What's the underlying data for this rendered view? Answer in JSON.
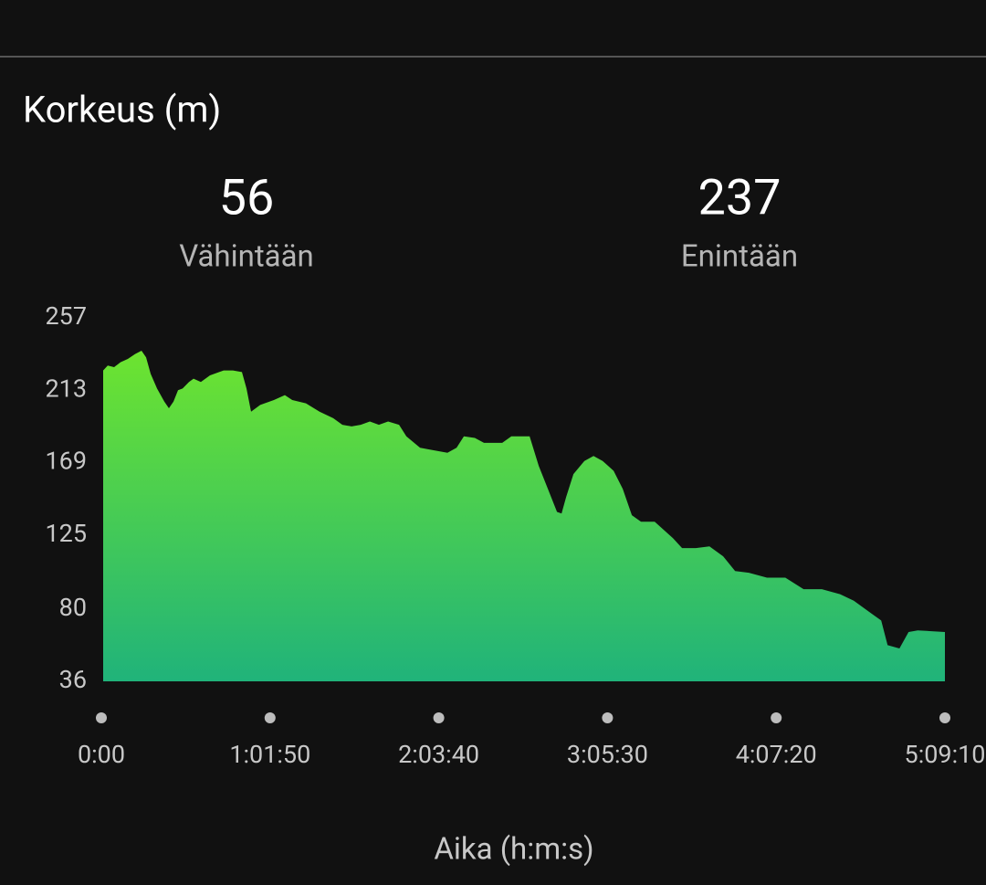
{
  "header": {
    "stats": [
      {
        "value": "56",
        "label": "Vähintään"
      },
      {
        "value": "237",
        "label": "Enintään"
      }
    ]
  },
  "chart_data": {
    "type": "area",
    "title": "Korkeus (m)",
    "x_label": "Aika (h:m:s)",
    "gradient": [
      "#6de42f",
      "#20b37a"
    ],
    "x": [
      40,
      141,
      281,
      422,
      582,
      743,
      884,
      984,
      1084,
      1225,
      1386,
      1486,
      1586,
      1687,
      1787,
      1928,
      2028,
      2189,
      2390,
      2590,
      2691,
      2892,
      3092,
      3193,
      3293,
      3494,
      3795,
      4036,
      4197,
      4498,
      4799,
      5100,
      5301,
      5502,
      5703,
      5904,
      6104,
      6305,
      6546,
      6707,
      7008,
      7209,
      7610,
      7811,
      7972,
      8213,
      8414,
      8815,
      9016,
      9418,
      9619,
      9819,
      10020,
      10120,
      10221,
      10381,
      10622,
      10823,
      11024,
      11265,
      11466,
      11666,
      11867,
      12168,
      12369,
      12570,
      12771,
      13072,
      13373,
      13674,
      13936,
      14237,
      14638,
      15040,
      15442,
      15843,
      16245,
      16546,
      16947,
      17148,
      17289,
      17550,
      17750,
      17951,
      18550
    ],
    "values": [
      225,
      228,
      227,
      230,
      232,
      235,
      237,
      233,
      223,
      214,
      206,
      202,
      206,
      213,
      214,
      218,
      220,
      218,
      222,
      224,
      225,
      225,
      224,
      214,
      200,
      204,
      207,
      210,
      207,
      205,
      200,
      196,
      192,
      191,
      192,
      194,
      192,
      194,
      192,
      185,
      178,
      177,
      175,
      178,
      185,
      184,
      181,
      181,
      185,
      185,
      167,
      153,
      139,
      138,
      148,
      162,
      170,
      173,
      170,
      164,
      153,
      137,
      133,
      133,
      128,
      123,
      117,
      117,
      118,
      112,
      103,
      102,
      99,
      99,
      92,
      92,
      89,
      85,
      77,
      73,
      58,
      56,
      66,
      67,
      66
    ],
    "xlim": [
      0,
      18550
    ],
    "xticks": [
      {
        "value": 0,
        "label": "0:00"
      },
      {
        "value": 3710,
        "label": "1:01:50"
      },
      {
        "value": 7420,
        "label": "2:03:40"
      },
      {
        "value": 11130,
        "label": "3:05:30"
      },
      {
        "value": 14840,
        "label": "4:07:20"
      },
      {
        "value": 18550,
        "label": "5:09:10"
      }
    ],
    "ylim": [
      36,
      257
    ],
    "yticks": [
      36,
      80,
      125,
      169,
      213,
      257
    ]
  }
}
